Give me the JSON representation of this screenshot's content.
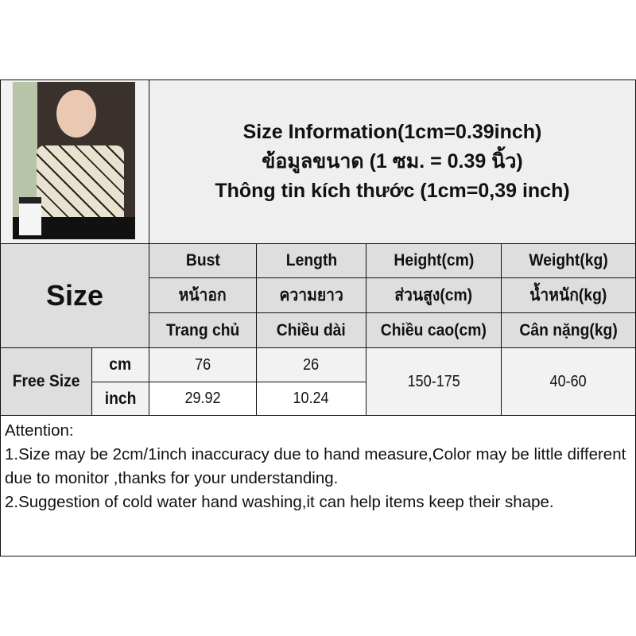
{
  "title": {
    "line1": "Size Information(1cm=0.39inch)",
    "line2": "ข้อมูลขนาด (1 ซม. = 0.39 นิ้ว)",
    "line3": "Thông tin kích thước (1cm=0,39 inch)"
  },
  "table": {
    "size_label": "Size",
    "headers": [
      {
        "en": "Bust",
        "th": "หน้าอก",
        "vi": "Trang chủ"
      },
      {
        "en": "Length",
        "th": "ความยาว",
        "vi": "Chiều dài"
      },
      {
        "en": "Height(cm)",
        "th": "ส่วนสูง(cm)",
        "vi": "Chiều cao(cm)"
      },
      {
        "en": "Weight(kg)",
        "th": "น้ำหนัก(kg)",
        "vi": "Cân nặng(kg)"
      }
    ],
    "row_label": "Free Size",
    "units": [
      "cm",
      "inch"
    ],
    "bust": [
      "76",
      "29.92"
    ],
    "length": [
      "26",
      "10.24"
    ],
    "height": "150-175",
    "weight": "40-60"
  },
  "attention": {
    "heading": "Attention:",
    "line1": "1.Size may be 2cm/1inch inaccuracy due to hand measure,Color may be little different due to monitor ,thanks for your understanding.",
    "line2": "2.Suggestion of cold water hand washing,it can help items keep their shape."
  }
}
